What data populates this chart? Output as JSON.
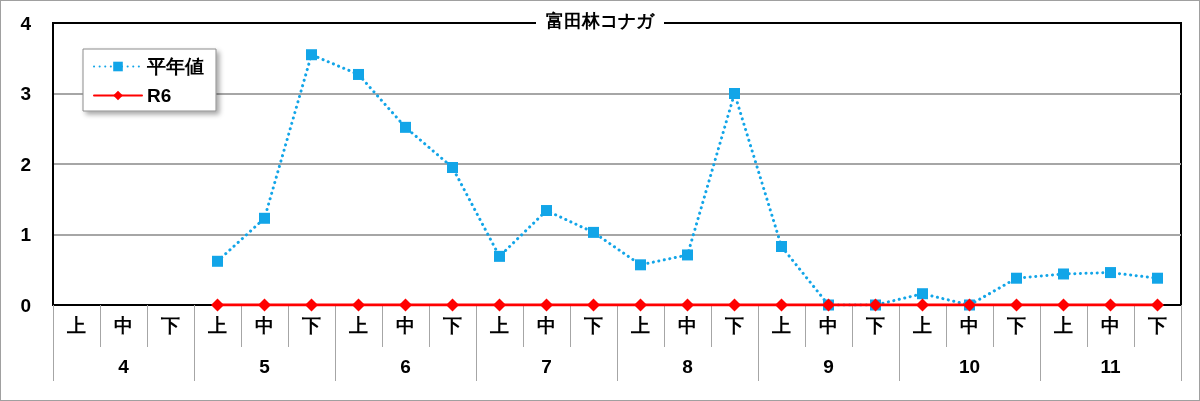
{
  "chart_data": {
    "type": "line",
    "title": "富田林コナガ",
    "categories": [
      "上",
      "中",
      "下",
      "上",
      "中",
      "下",
      "上",
      "中",
      "下",
      "上",
      "中",
      "下",
      "上",
      "中",
      "下",
      "上",
      "中",
      "下",
      "上",
      "中",
      "下",
      "上",
      "中",
      "下"
    ],
    "annotations": [
      "4",
      "5",
      "6",
      "7",
      "8",
      "9",
      "10",
      "11"
    ],
    "series": [
      {
        "name": "平年値",
        "color": "#12a5e8",
        "marker": "square",
        "line_style": "dotted",
        "values": [
          null,
          null,
          null,
          0.62,
          1.23,
          3.55,
          3.27,
          2.52,
          1.95,
          0.69,
          1.34,
          1.03,
          0.57,
          0.71,
          3.0,
          0.83,
          0,
          0,
          0.16,
          0,
          0.38,
          0.44,
          0.46,
          0.38
        ]
      },
      {
        "name": "R6",
        "color": "#ff0000",
        "marker": "diamond",
        "line_style": "solid",
        "values": [
          null,
          null,
          null,
          0,
          0,
          0,
          0,
          0,
          0,
          0,
          0,
          0,
          0,
          0,
          0,
          0,
          0,
          0,
          0,
          0,
          0,
          0,
          0,
          0
        ]
      }
    ],
    "ylim": [
      0,
      4
    ],
    "yticks": [
      0,
      1,
      2,
      3,
      4
    ],
    "grid": "y",
    "legend": "top left"
  }
}
